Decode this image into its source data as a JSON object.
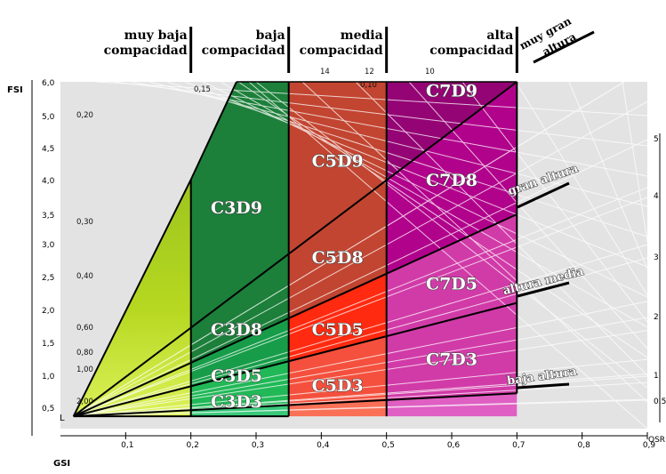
{
  "chart_data": {
    "type": "area",
    "title": "",
    "xlabel": "GSI",
    "ylabel": "FSI",
    "xlim": [
      0,
      0.9
    ],
    "ylim": [
      0.4,
      6.0
    ],
    "x_ticks": [
      "0,1",
      "0,2",
      "0,3",
      "0,4",
      "0,5",
      "0,6",
      "0,7",
      "0,8",
      "0,9"
    ],
    "y_ticks": [
      {
        "label": "0,5",
        "v": 0.5
      },
      {
        "label": "1,0",
        "v": 1.0
      },
      {
        "label": "1,5",
        "v": 1.5
      },
      {
        "label": "2,0",
        "v": 2.0
      },
      {
        "label": "2,5",
        "v": 2.5
      },
      {
        "label": "3,0",
        "v": 3.0
      },
      {
        "label": "3,5",
        "v": 3.5
      },
      {
        "label": "4,0",
        "v": 4.0
      },
      {
        "label": "4,5",
        "v": 4.5
      },
      {
        "label": "5,0",
        "v": 5.0
      },
      {
        "label": "6,0",
        "v": 6.0
      }
    ],
    "origin_label": "L",
    "osr_label": "OSR",
    "osr_labels": [
      {
        "label": "2,00",
        "slope": 0.5
      },
      {
        "label": "1,00",
        "slope": 1.0
      },
      {
        "label": "0,80",
        "slope": 1.25
      },
      {
        "label": "0,60",
        "slope": 1.6667
      },
      {
        "label": "0,40",
        "slope": 2.5
      },
      {
        "label": "0,30",
        "slope": 3.3333
      },
      {
        "label": "0,20",
        "slope": 5.0
      },
      {
        "label": "0,15",
        "slope": 6.6667
      },
      {
        "label": "0,10",
        "slope": 10
      },
      {
        "label": "12",
        "slope": 12
      },
      {
        "label": "14",
        "slope": 14
      }
    ],
    "layer_axis": {
      "ticks": [
        {
          "label": "0,5",
          "v": 0.5
        },
        {
          "label": "1",
          "v": 1
        },
        {
          "label": "2",
          "v": 2
        },
        {
          "label": "3",
          "v": 3
        },
        {
          "label": "4",
          "v": 4
        },
        {
          "label": "5",
          "v": 5
        }
      ]
    },
    "compactness_zones": [
      {
        "line1": "muy baja",
        "line2": "compacidad",
        "from": 0.0,
        "to": 0.2
      },
      {
        "line1": "baja",
        "line2": "compacidad",
        "from": 0.2,
        "to": 0.35
      },
      {
        "line1": "media",
        "line2": "compacidad",
        "from": 0.35,
        "to": 0.5
      },
      {
        "line1": "alta",
        "line2": "compacidad",
        "from": 0.5,
        "to": 0.7
      }
    ],
    "corner_label": {
      "line1": "muy gran",
      "line2": "altura"
    },
    "height_lines": [
      {
        "label": "baja altura",
        "floors": 1
      },
      {
        "label": "altura media",
        "floors": 3
      },
      {
        "label": "gran altura",
        "floors": 5
      }
    ],
    "regions": [
      {
        "code": "C3D3",
        "color": "#39c87a"
      },
      {
        "code": "C3D5",
        "color": "#21b857"
      },
      {
        "code": "C3D8",
        "color": "#179d49"
      },
      {
        "code": "C3D9",
        "color": "#1c7f3a"
      },
      {
        "code": "C5D3",
        "color": "#fa7057"
      },
      {
        "code": "C5D5",
        "color": "#f4503d"
      },
      {
        "code": "C5D8",
        "color": "#ff2a10"
      },
      {
        "code": "C5D9",
        "color": "#c24531"
      },
      {
        "code": "C7D3",
        "color": "#df5fc3"
      },
      {
        "code": "C7D5",
        "color": "#d13ba8"
      },
      {
        "code": "C7D8",
        "color": "#b1028c"
      },
      {
        "code": "C7D9",
        "color": "#940474"
      }
    ],
    "grid": true,
    "background_color": "#e3e3e3"
  }
}
